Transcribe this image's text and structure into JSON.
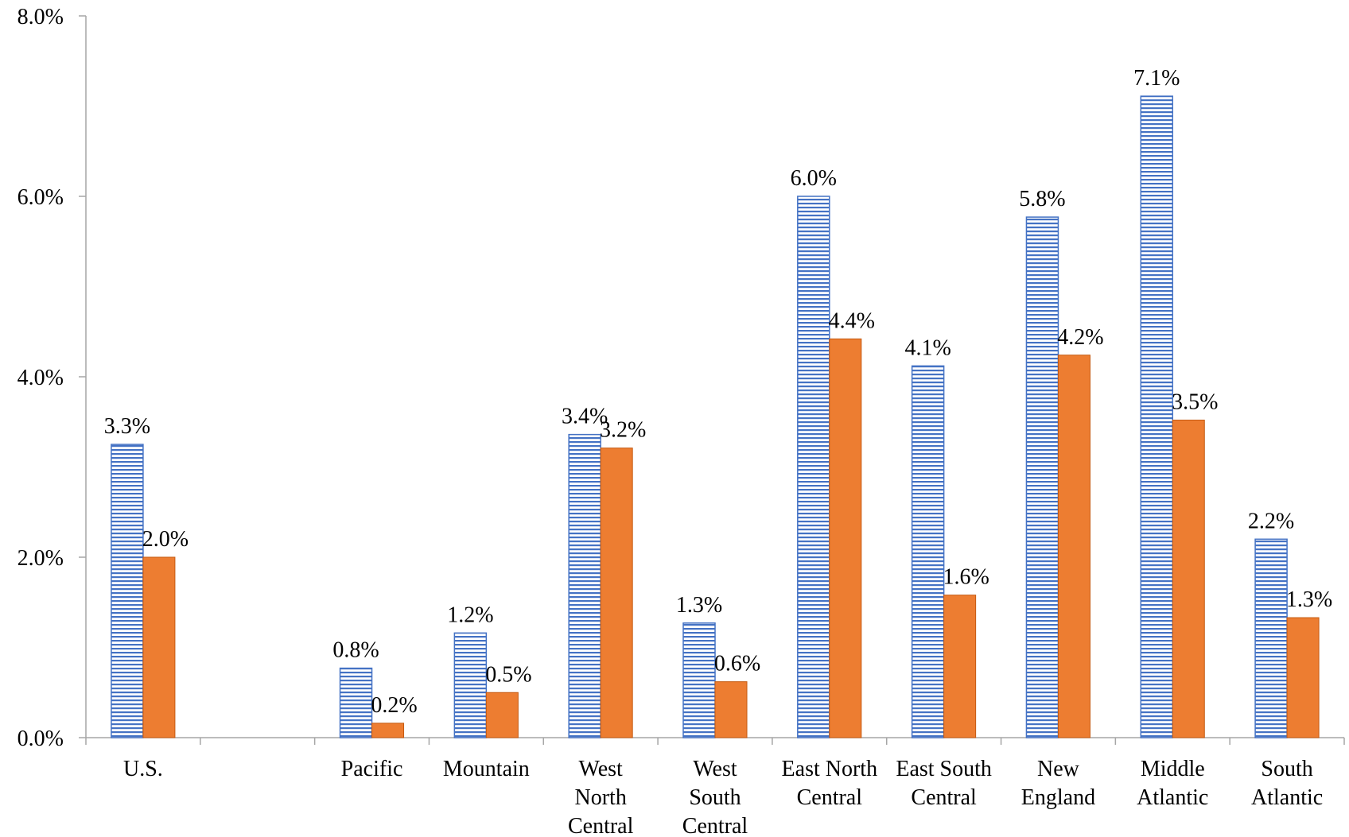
{
  "chart_data": {
    "type": "bar",
    "categories": [
      [
        "U.S."
      ],
      [],
      [
        "Pacific"
      ],
      [
        "Mountain"
      ],
      [
        "West",
        "North",
        "Central"
      ],
      [
        "West",
        "South",
        "Central"
      ],
      [
        "East North",
        "Central"
      ],
      [
        "East South",
        "Central"
      ],
      [
        "New",
        "England"
      ],
      [
        "Middle",
        "Atlantic"
      ],
      [
        "South",
        "Atlantic"
      ]
    ],
    "series": [
      {
        "pattern": "horizontal-stripes",
        "color": "#4472c4",
        "values": [
          3.25,
          null,
          0.77,
          1.16,
          3.36,
          1.27,
          6.0,
          4.12,
          5.77,
          7.11,
          2.2
        ],
        "labels": [
          "3.3%",
          "",
          "0.8%",
          "1.2%",
          "3.4%",
          "1.3%",
          "6.0%",
          "4.1%",
          "5.8%",
          "7.1%",
          "2.2%"
        ]
      },
      {
        "pattern": "solid",
        "color": "#ed7d31",
        "values": [
          2.0,
          null,
          0.16,
          0.5,
          3.21,
          0.62,
          4.42,
          1.58,
          4.24,
          3.52,
          1.33
        ],
        "labels": [
          "2.0%",
          "",
          "0.2%",
          "0.5%",
          "3.2%",
          "0.6%",
          "4.4%",
          "1.6%",
          "4.2%",
          "3.5%",
          "1.3%"
        ]
      }
    ],
    "ylim": [
      0,
      8
    ],
    "yticks": [
      0,
      2,
      4,
      6,
      8
    ],
    "ytick_labels": [
      "0.0%",
      "2.0%",
      "4.0%",
      "6.0%",
      "8.0%"
    ],
    "grid": false,
    "title": "",
    "xlabel": "",
    "ylabel": ""
  }
}
